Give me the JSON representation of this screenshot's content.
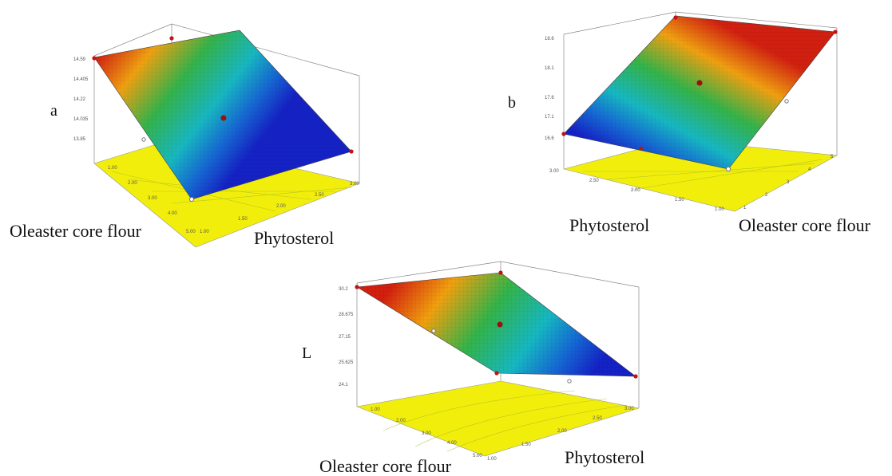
{
  "chart_data": [
    {
      "type": "surface3d",
      "panel_label": "a",
      "x_label": "Oleaster core flour",
      "y_label": "Phytosterol",
      "x_ticks": [
        "1.00",
        "2.00",
        "3.00",
        "4.00",
        "5.00"
      ],
      "y_ticks": [
        "1.00",
        "1.50",
        "2.00",
        "2.50",
        "3.00"
      ],
      "z_ticks": [
        "13.85",
        "14.035",
        "14.22",
        "14.405",
        "14.59"
      ],
      "zlim": [
        13.85,
        14.59
      ],
      "corner_values": {
        "x1_y1": 14.59,
        "x1_y3": 14.59,
        "x5_y1": 13.85,
        "x5_y3": 13.85
      },
      "design_points": [
        {
          "x": 1,
          "y": 1,
          "z": 14.59
        },
        {
          "x": 1,
          "y": 3,
          "z": 14.59
        },
        {
          "x": 5,
          "y": 1,
          "z": 13.85
        },
        {
          "x": 5,
          "y": 3,
          "z": 13.85
        },
        {
          "x": 3,
          "y": 2,
          "z": 14.22
        }
      ]
    },
    {
      "type": "surface3d",
      "panel_label": "b",
      "x_label": "Phytosterol",
      "y_label": "Oleaster core flour",
      "x_ticks": [
        "3.00",
        "2.50",
        "2.00",
        "1.50",
        "1.00"
      ],
      "y_ticks": [
        "1",
        "2",
        "3",
        "4",
        "5"
      ],
      "z_ticks": [
        "16.6",
        "17.1",
        "17.6",
        "18.1",
        "18.6"
      ],
      "zlim": [
        16.6,
        18.6
      ],
      "corner_values": {
        "x3_y1": 16.6,
        "x1_y1": 16.6,
        "x3_y5": 18.6,
        "x1_y5": 18.6
      },
      "design_points": [
        {
          "x": 3,
          "y": 1,
          "z": 16.6
        },
        {
          "x": 1,
          "y": 1,
          "z": 16.6
        },
        {
          "x": 3,
          "y": 5,
          "z": 18.6
        },
        {
          "x": 1,
          "y": 5,
          "z": 18.6
        },
        {
          "x": 2,
          "y": 3,
          "z": 17.6
        }
      ]
    },
    {
      "type": "surface3d",
      "panel_label": "L",
      "x_label": "Oleaster core flour",
      "y_label": "Phytosterol",
      "x_ticks": [
        "1.00",
        "2.00",
        "3.00",
        "4.00",
        "5.00"
      ],
      "y_ticks": [
        "1.00",
        "1.50",
        "2.00",
        "2.50",
        "3.00"
      ],
      "z_ticks": [
        "24.1",
        "25.625",
        "27.15",
        "28.675",
        "30.2"
      ],
      "zlim": [
        24.1,
        30.2
      ],
      "corner_values": {
        "x1_y1": 30.2,
        "x1_y3": 30.2,
        "x5_y1": 24.1,
        "x5_y3": 24.1
      },
      "design_points": [
        {
          "x": 1,
          "y": 1,
          "z": 30.2
        },
        {
          "x": 1,
          "y": 3,
          "z": 30.2
        },
        {
          "x": 5,
          "y": 1,
          "z": 24.1
        },
        {
          "x": 5,
          "y": 3,
          "z": 24.1
        },
        {
          "x": 3,
          "y": 2,
          "z": 27.15
        }
      ]
    }
  ]
}
